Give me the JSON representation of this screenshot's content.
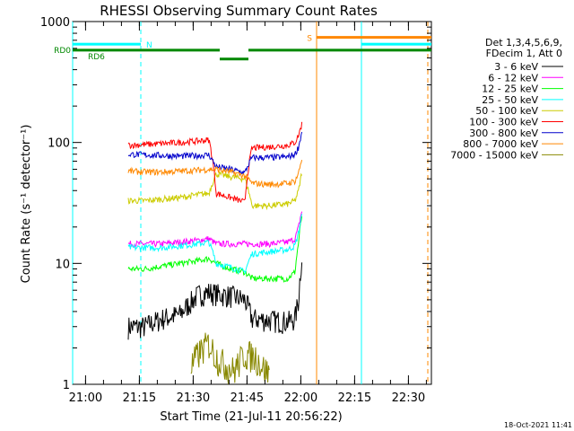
{
  "chart_data": {
    "type": "line",
    "title": "RHESSI Observing Summary Count Rates",
    "xlabel": "Start Time (21-Jul-11 20:56:22)",
    "ylabel": "Count Rate (s⁻¹ detector⁻¹)",
    "y_scale": "log",
    "ylim": [
      1,
      1000
    ],
    "x_unit": "minutes since 20:56:22",
    "xlim": [
      0,
      100
    ],
    "x_ticks": [
      {
        "label": "21:00",
        "value": 3.6
      },
      {
        "label": "21:15",
        "value": 18.6
      },
      {
        "label": "21:30",
        "value": 33.6
      },
      {
        "label": "21:45",
        "value": 48.6
      },
      {
        "label": "22:00",
        "value": 63.6
      },
      {
        "label": "22:15",
        "value": 78.6
      },
      {
        "label": "22:30",
        "value": 93.6
      }
    ],
    "y_ticks": [
      {
        "label": "1",
        "value": 1
      },
      {
        "label": "10",
        "value": 10
      },
      {
        "label": "100",
        "value": 100
      },
      {
        "label": "1000",
        "value": 1000
      }
    ],
    "legend": {
      "placement": "right",
      "header": [
        "Det 1,3,4,5,6,9,",
        "FDecim 1, Att 0"
      ]
    },
    "series": [
      {
        "name": "3 - 6 keV",
        "color": "#000000",
        "x": [
          15.5,
          20,
          25,
          30,
          35,
          38,
          40,
          44,
          48,
          50,
          55,
          60,
          62,
          63,
          64
        ],
        "y": [
          3,
          3,
          3.5,
          3.8,
          5.5,
          5.8,
          5.6,
          5.4,
          5,
          3.5,
          3.4,
          3.3,
          3.5,
          5,
          12
        ]
      },
      {
        "name": "6 - 12 keV",
        "color": "#ff00ff",
        "x": [
          15.5,
          20,
          25,
          30,
          35,
          38,
          40,
          44,
          48,
          50,
          55,
          60,
          62,
          63,
          64
        ],
        "y": [
          14.5,
          14.5,
          14.5,
          15,
          15.5,
          16,
          14.5,
          14.5,
          14.5,
          14.5,
          14.5,
          15,
          16,
          20,
          28
        ]
      },
      {
        "name": "12 - 25 keV",
        "color": "#00ff00",
        "x": [
          15.5,
          20,
          25,
          30,
          35,
          38,
          40,
          44,
          48,
          50,
          55,
          60,
          62,
          63,
          64
        ],
        "y": [
          9,
          9,
          9.5,
          10,
          10.5,
          11,
          10,
          9,
          8.5,
          7.5,
          7.5,
          7.5,
          8.5,
          15,
          26
        ]
      },
      {
        "name": "25 - 50 keV",
        "color": "#00ffff",
        "x": [
          15.5,
          20,
          25,
          30,
          35,
          38,
          40,
          44,
          48,
          50,
          55,
          60,
          62,
          63,
          64
        ],
        "y": [
          13.5,
          13.5,
          13.5,
          14,
          14.5,
          15,
          10,
          9.3,
          8.5,
          12,
          12.5,
          13,
          14,
          18,
          26
        ]
      },
      {
        "name": "50 - 100 keV",
        "color": "#cccc00",
        "x": [
          15.5,
          20,
          25,
          30,
          35,
          38,
          40,
          44,
          48,
          50,
          55,
          60,
          62,
          63,
          64
        ],
        "y": [
          33,
          33,
          34,
          35,
          37,
          38,
          55,
          52,
          50,
          30,
          30,
          31,
          33,
          40,
          58
        ]
      },
      {
        "name": "100 - 300 keV",
        "color": "#ff0000",
        "x": [
          15.5,
          20,
          25,
          30,
          35,
          38,
          40,
          44,
          48,
          50,
          55,
          60,
          62,
          63,
          64
        ],
        "y": [
          95,
          96,
          98,
          100,
          103,
          105,
          38,
          35,
          32,
          90,
          92,
          95,
          100,
          115,
          145
        ]
      },
      {
        "name": "300 - 800 keV",
        "color": "#0000cc",
        "x": [
          15.5,
          20,
          25,
          30,
          35,
          38,
          40,
          44,
          48,
          50,
          55,
          60,
          62,
          63,
          64
        ],
        "y": [
          80,
          79,
          78,
          77,
          78,
          79,
          63,
          60,
          56,
          75,
          75,
          76,
          80,
          92,
          125
        ]
      },
      {
        "name": "800 - 7000 keV",
        "color": "#ff8800",
        "x": [
          15.5,
          20,
          25,
          30,
          35,
          38,
          40,
          44,
          48,
          50,
          55,
          60,
          62,
          63,
          64
        ],
        "y": [
          58,
          57,
          57,
          58,
          59,
          60,
          60,
          57,
          53,
          46,
          45,
          46,
          48,
          56,
          75
        ]
      },
      {
        "name": "7000 - 15000 keV",
        "color": "#888800",
        "x": [
          33,
          35,
          38,
          40,
          42,
          45,
          48,
          51,
          53,
          55
        ],
        "y": [
          1.4,
          1.8,
          2.2,
          1.7,
          1.5,
          1.3,
          1.8,
          1.7,
          1.4,
          1.2
        ]
      }
    ],
    "annotations": [
      {
        "label": "N",
        "color": "#00ffff",
        "x_start": 0,
        "x_end": 19,
        "y": 650
      },
      {
        "label": "S",
        "color": "#ff8800",
        "x_start": 68,
        "x_end": 100,
        "y": 740
      },
      {
        "label": "RD0",
        "color": "#008800",
        "x": 0,
        "y": 580
      },
      {
        "label": "RD6",
        "color": "#008800",
        "x": 2,
        "y": 520
      }
    ],
    "bars": [
      {
        "color": "#00ffff",
        "x_start": 0,
        "x_end": 19,
        "y": 650
      },
      {
        "color": "#ff8800",
        "x_start": 68,
        "x_end": 100,
        "y": 740
      },
      {
        "color": "#00ffff",
        "x_start": 80.5,
        "x_end": 100,
        "y": 650
      },
      {
        "color": "#008800",
        "x_start": 0,
        "x_end": 41,
        "y": 580
      },
      {
        "color": "#008800",
        "x_start": 41,
        "x_end": 49,
        "y": 490
      },
      {
        "color": "#008800",
        "x_start": 49,
        "x_end": 100,
        "y": 580
      }
    ],
    "vlines": [
      {
        "x": 0,
        "color": "#00ffff",
        "style": "solid"
      },
      {
        "x": 19,
        "color": "#00ffff",
        "style": "dashed"
      },
      {
        "x": 68,
        "color": "#ff8800",
        "style": "solid"
      },
      {
        "x": 80.5,
        "color": "#00ffff",
        "style": "solid"
      },
      {
        "x": 99,
        "color": "#ff8800",
        "style": "dashed"
      }
    ],
    "timestamp": "18-Oct-2021 11:41"
  }
}
